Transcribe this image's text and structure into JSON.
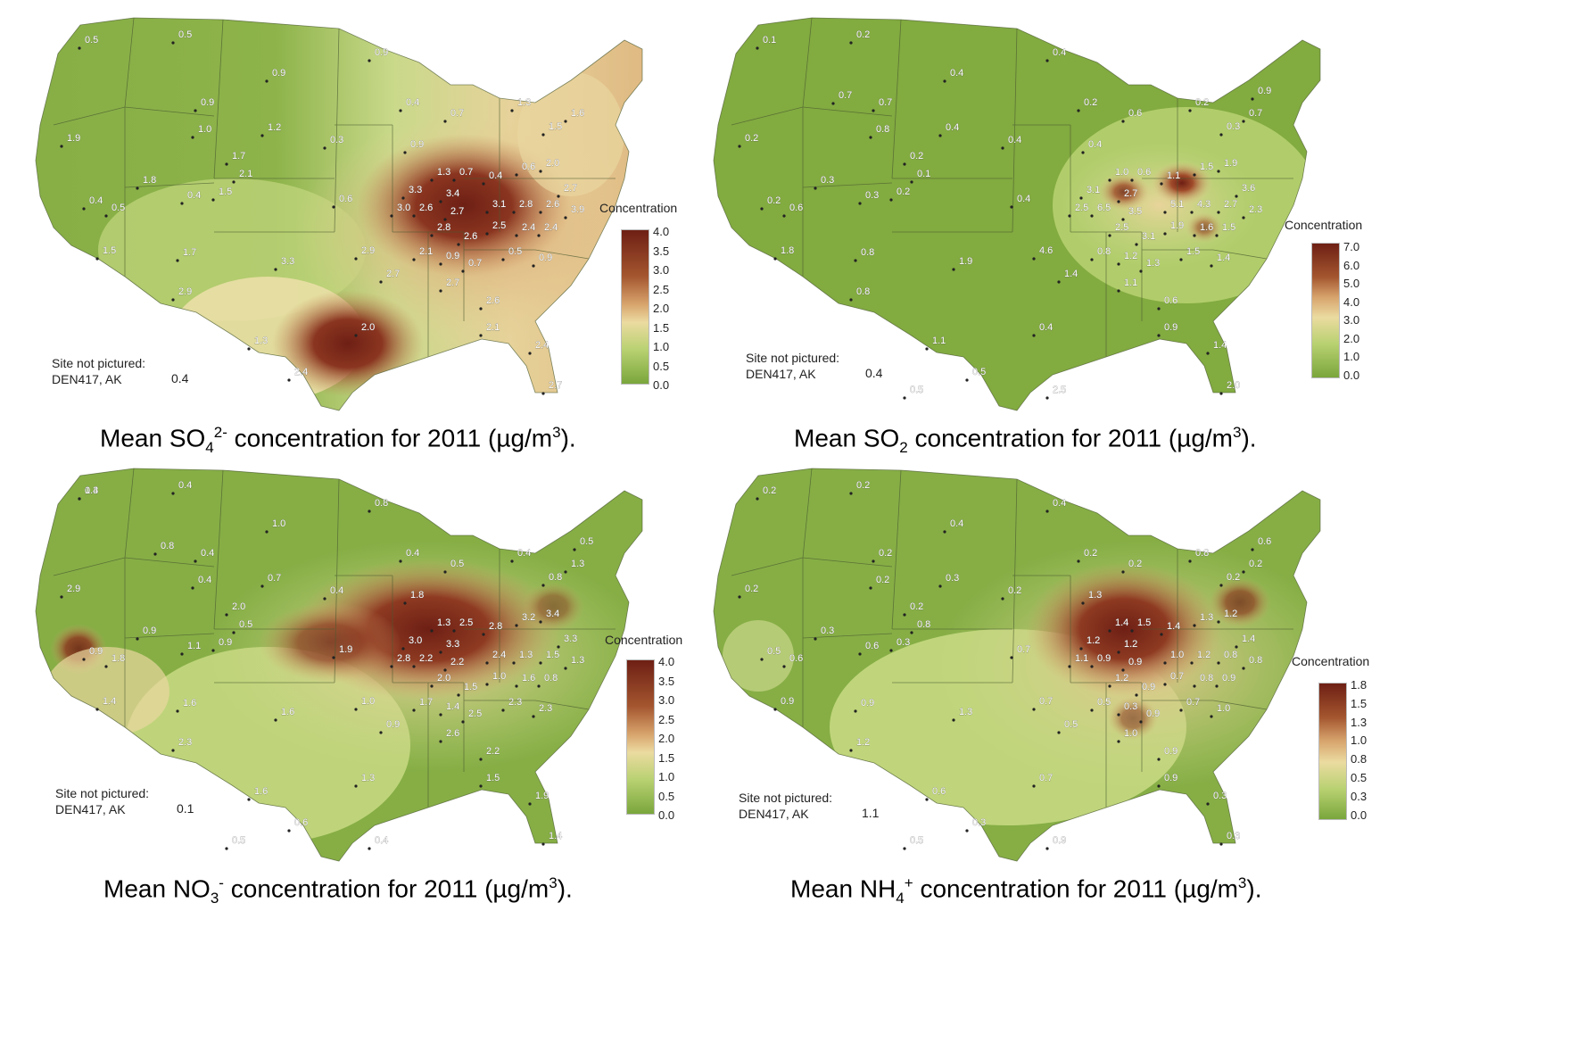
{
  "panels": [
    {
      "id": "so4",
      "caption": {
        "pre": "Mean SO",
        "sub": "4",
        "sup": "2-",
        "post": " concentration for 2011 (µg/m",
        "unitsup": "3",
        "end": ")."
      },
      "legend": {
        "title": "Concentration",
        "ticks": [
          "4.0",
          "3.5",
          "3.0",
          "2.5",
          "2.0",
          "1.5",
          "1.0",
          "0.5",
          "0.0"
        ]
      },
      "site_not_pictured": {
        "label": "Site not pictured:",
        "site": "DEN417, AK",
        "value": "0.4"
      },
      "values": [
        "0.5",
        "0.5",
        "0.9",
        "0.9",
        "0.9",
        "1.0",
        "1.2",
        "0.3",
        "0.4",
        "0.7",
        "1.3",
        "1.5",
        "1.6",
        "1.9",
        "1.7",
        "2.1",
        "1.8",
        "1.5",
        "0.4",
        "0.4",
        "0.5",
        "0.6",
        "0.9",
        "1.3",
        "0.7",
        "0.4",
        "0.6",
        "2.0",
        "2.7",
        "3.3",
        "3.4",
        "3.0",
        "2.6",
        "2.7",
        "3.1",
        "2.8",
        "2.6",
        "3.9",
        "2.8",
        "2.6",
        "2.5",
        "2.4",
        "2.4",
        "2.9",
        "2.7",
        "2.1",
        "0.9",
        "0.7",
        "0.5",
        "0.9",
        "1.5",
        "1.7",
        "3.3",
        "2.9",
        "2.7",
        "2.6",
        "2.1",
        "2.0",
        "1.3",
        "2.4",
        "2.7",
        "2.4"
      ]
    },
    {
      "id": "so2",
      "caption": {
        "pre": "Mean SO",
        "sub": "2",
        "sup": "",
        "post": " concentration for 2011 (µg/m",
        "unitsup": "3",
        "end": ")."
      },
      "legend": {
        "title": "Concentration",
        "ticks": [
          "7.0",
          "6.0",
          "5.0",
          "4.0",
          "3.0",
          "2.0",
          "1.0",
          "0.0"
        ]
      },
      "site_not_pictured": {
        "label": "Site not pictured:",
        "site": "DEN417, AK",
        "value": "0.4"
      },
      "values": [
        "0.1",
        "0.2",
        "0.4",
        "0.4",
        "0.7",
        "0.8",
        "0.4",
        "0.4",
        "0.2",
        "0.6",
        "0.2",
        "0.3",
        "0.7",
        "0.2",
        "0.2",
        "0.1",
        "0.3",
        "0.2",
        "0.3",
        "0.2",
        "0.6",
        "0.4",
        "0.4",
        "1.0",
        "0.6",
        "1.1",
        "1.5",
        "1.9",
        "3.6",
        "3.1",
        "2.7",
        "2.5",
        "6.5",
        "3.5",
        "5.1",
        "4.3",
        "2.7",
        "2.3",
        "2.5",
        "3.1",
        "1.9",
        "1.6",
        "1.5",
        "4.6",
        "1.4",
        "0.8",
        "1.2",
        "1.3",
        "1.5",
        "1.4",
        "1.8",
        "0.8",
        "1.9",
        "0.8",
        "1.1",
        "0.6",
        "0.9",
        "0.4",
        "1.1",
        "1.4",
        "2.0",
        "0.5",
        "0.5",
        "2.5",
        "0.9",
        "0.7"
      ]
    },
    {
      "id": "no3",
      "caption": {
        "pre": "Mean NO",
        "sub": "3",
        "sup": "-",
        "post": " concentration for 2011 (µg/m",
        "unitsup": "3",
        "end": ")."
      },
      "legend": {
        "title": "Concentration",
        "ticks": [
          "4.0",
          "3.5",
          "3.0",
          "2.5",
          "2.0",
          "1.5",
          "1.0",
          "0.5",
          "0.0"
        ]
      },
      "site_not_pictured": {
        "label": "Site not pictured:",
        "site": "DEN417, AK",
        "value": "0.1"
      },
      "values": [
        "0.3",
        "0.4",
        "0.8",
        "1.0",
        "0.4",
        "0.4",
        "0.7",
        "0.4",
        "0.4",
        "0.5",
        "0.4",
        "0.8",
        "1.3",
        "2.9",
        "2.0",
        "0.5",
        "0.9",
        "0.9",
        "1.1",
        "0.9",
        "1.8",
        "1.9",
        "1.8",
        "1.3",
        "2.5",
        "2.8",
        "3.2",
        "3.4",
        "3.3",
        "3.0",
        "3.3",
        "2.8",
        "2.2",
        "2.2",
        "2.4",
        "1.3",
        "1.5",
        "1.3",
        "2.0",
        "1.5",
        "1.0",
        "1.6",
        "0.8",
        "1.0",
        "0.9",
        "1.7",
        "1.4",
        "2.5",
        "2.3",
        "2.3",
        "1.4",
        "1.6",
        "1.6",
        "2.3",
        "2.6",
        "2.2",
        "1.5",
        "1.3",
        "1.6",
        "1.9",
        "1.4",
        "0.6",
        "0.5",
        "0.4",
        "0.5",
        "0.8",
        "1.4"
      ]
    },
    {
      "id": "nh4",
      "caption": {
        "pre": "Mean NH",
        "sub": "4",
        "sup": "+",
        "post": " concentration for 2011 (µg/m",
        "unitsup": "3",
        "end": ")."
      },
      "legend": {
        "title": "Concentration",
        "ticks": [
          "1.8",
          "1.5",
          "1.3",
          "1.0",
          "0.8",
          "0.5",
          "0.3",
          "0.0"
        ]
      },
      "site_not_pictured": {
        "label": "Site not pictured:",
        "site": "DEN417, AK",
        "value": "1.1"
      },
      "values": [
        "0.2",
        "0.2",
        "0.4",
        "0.4",
        "0.2",
        "0.2",
        "0.3",
        "0.2",
        "0.2",
        "0.2",
        "0.8",
        "0.2",
        "0.2",
        "0.2",
        "0.2",
        "0.8",
        "0.3",
        "0.3",
        "0.6",
        "0.5",
        "0.6",
        "0.7",
        "1.3",
        "1.4",
        "1.5",
        "1.4",
        "1.3",
        "1.2",
        "1.4",
        "1.2",
        "1.2",
        "1.1",
        "0.9",
        "0.9",
        "1.0",
        "1.2",
        "0.8",
        "0.8",
        "1.2",
        "0.9",
        "0.7",
        "0.8",
        "0.9",
        "0.7",
        "0.5",
        "0.5",
        "0.3",
        "0.9",
        "0.7",
        "1.0",
        "0.9",
        "0.9",
        "1.3",
        "1.2",
        "1.0",
        "0.9",
        "0.9",
        "0.7",
        "0.6",
        "0.3",
        "0.3",
        "0.3",
        "0.5",
        "0.9",
        "0.6"
      ]
    }
  ],
  "colors": {
    "dark": "#6e1f14",
    "mid": "#c58a5a",
    "pale": "#efe1a8",
    "light_green": "#b4cf6c",
    "green": "#7ea83e"
  }
}
